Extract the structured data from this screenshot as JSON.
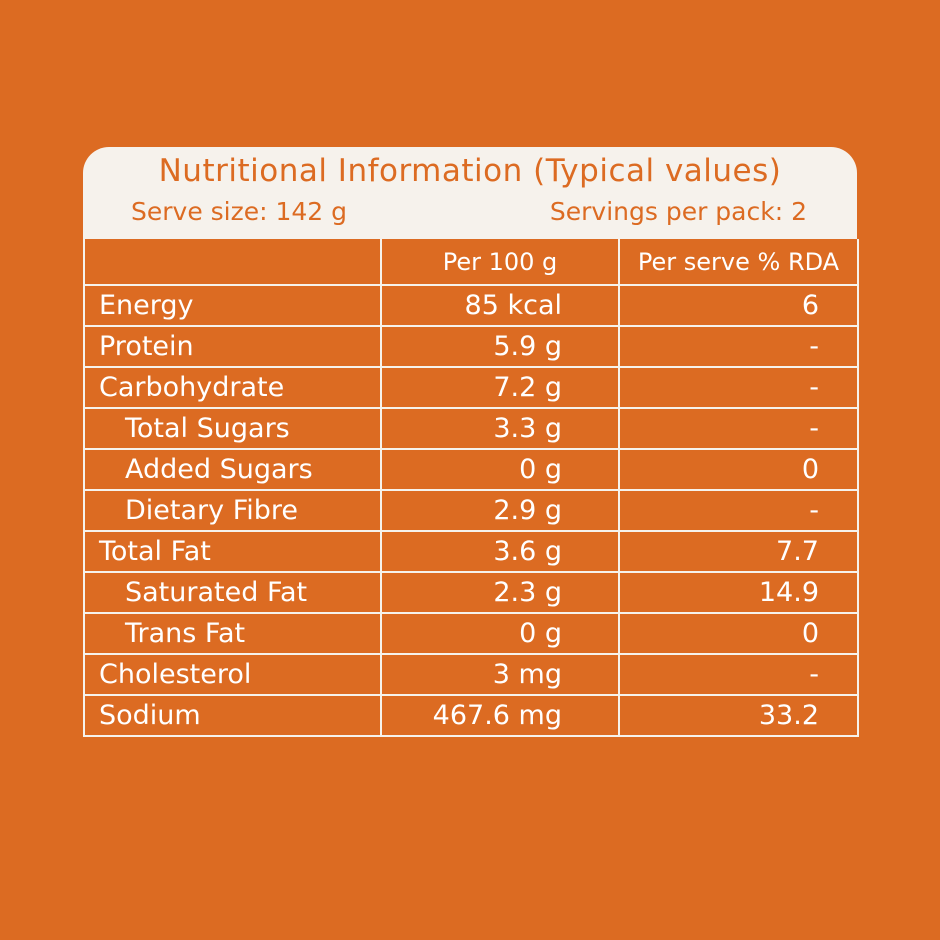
{
  "header": {
    "title": "Nutritional Information (Typical values)",
    "serve_size": "Serve size: 142 g",
    "servings_per_pack": "Servings per pack: 2"
  },
  "table": {
    "columns": [
      "",
      "Per 100 g",
      "Per serve % RDA"
    ],
    "rows": [
      {
        "label": "Energy",
        "per100": "85 kcal",
        "rda": "6",
        "indent": false
      },
      {
        "label": "Protein",
        "per100": "5.9 g",
        "rda": "-",
        "indent": false
      },
      {
        "label": "Carbohydrate",
        "per100": "7.2 g",
        "rda": "-",
        "indent": false
      },
      {
        "label": "Total Sugars",
        "per100": "3.3 g",
        "rda": "-",
        "indent": true
      },
      {
        "label": "Added Sugars",
        "per100": "0 g",
        "rda": "0",
        "indent": true
      },
      {
        "label": "Dietary Fibre",
        "per100": "2.9 g",
        "rda": "-",
        "indent": true
      },
      {
        "label": "Total Fat",
        "per100": "3.6 g",
        "rda": "7.7",
        "indent": false
      },
      {
        "label": "Saturated Fat",
        "per100": "2.3 g",
        "rda": "14.9",
        "indent": true
      },
      {
        "label": "Trans Fat",
        "per100": "0 g",
        "rda": "0",
        "indent": true
      },
      {
        "label": "Cholesterol",
        "per100": "3 mg",
        "rda": "-",
        "indent": false
      },
      {
        "label": "Sodium",
        "per100": "467.6 mg",
        "rda": "33.2",
        "indent": false
      }
    ]
  },
  "colors": {
    "background": "#dc6b22",
    "header_background": "#f6f2ec",
    "text_on_orange": "#ffffff",
    "header_text": "#dc6b22"
  }
}
